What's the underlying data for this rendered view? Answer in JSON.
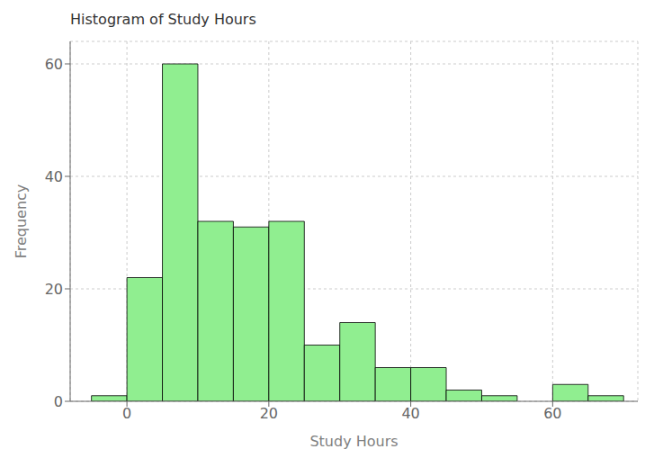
{
  "chart_data": {
    "type": "histogram",
    "title": "Histogram of Study Hours",
    "xlabel": "Study Hours",
    "ylabel": "Frequency",
    "bins": [
      -5,
      0,
      5,
      10,
      15,
      20,
      25,
      30,
      35,
      40,
      45,
      50,
      55,
      60,
      65,
      70
    ],
    "values": [
      1,
      22,
      60,
      32,
      31,
      32,
      10,
      14,
      6,
      6,
      2,
      1,
      0,
      3,
      1
    ],
    "color": "#90EE90",
    "xlim": [
      -8,
      72
    ],
    "ylim": [
      0,
      64
    ],
    "xticks": [
      0,
      20,
      40,
      60
    ],
    "yticks": [
      0,
      20,
      40,
      60
    ],
    "grid": true
  }
}
